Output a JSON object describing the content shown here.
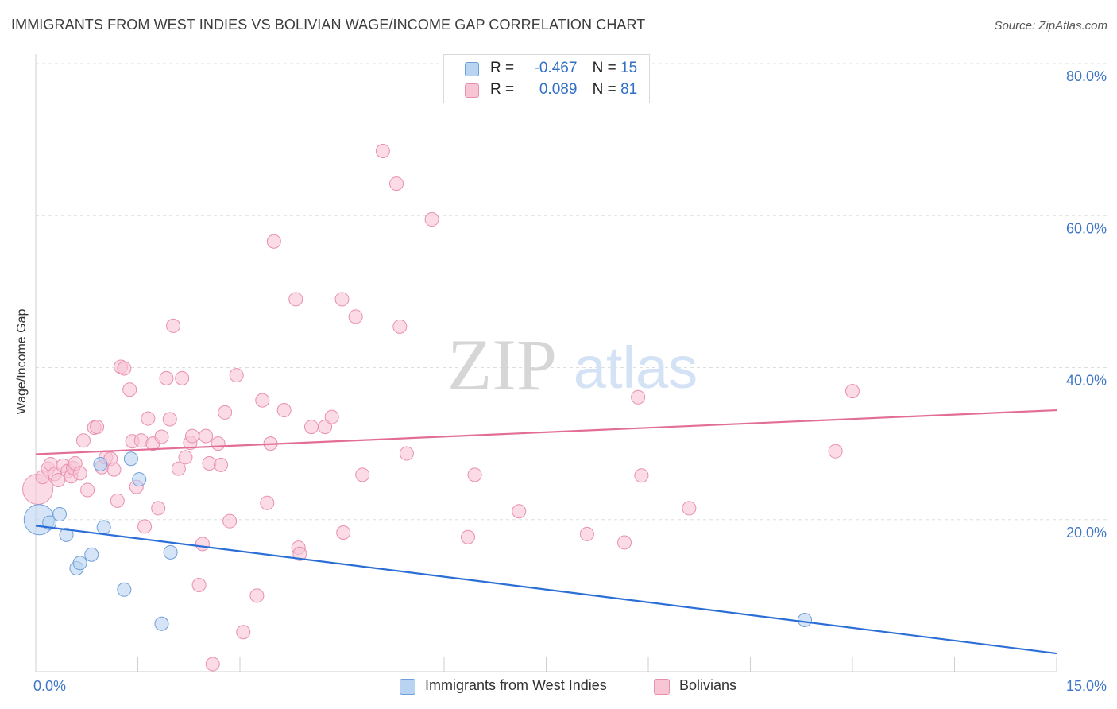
{
  "title": "IMMIGRANTS FROM WEST INDIES VS BOLIVIAN WAGE/INCOME GAP CORRELATION CHART",
  "source": "Source: ZipAtlas.com",
  "watermark": {
    "zip": "ZIP",
    "atlas": "atlas"
  },
  "colors": {
    "blue_fill": "#b9d3f2",
    "blue_stroke": "#6f9fd8",
    "blue_line": "#2b6fd6",
    "pink_fill": "#f8c5d5",
    "pink_stroke": "#e98fae",
    "pink_line": "#e26e98",
    "axis_text": "#3f76c7",
    "grid": "#dedede"
  },
  "legend": {
    "rows": [
      {
        "r_label": "R =",
        "r_value": "-0.467",
        "n_label": "N =",
        "n_value": "15"
      },
      {
        "r_label": "R =",
        "r_value": "0.089",
        "n_label": "N =",
        "n_value": "81"
      }
    ]
  },
  "chart_data": {
    "type": "scatter",
    "title": "IMMIGRANTS FROM WEST INDIES VS BOLIVIAN WAGE/INCOME GAP CORRELATION CHART",
    "xlabel": "",
    "ylabel": "Wage/Income Gap",
    "xlim": [
      0,
      15
    ],
    "ylim": [
      0,
      82
    ],
    "x_tick_labels": [
      "0.0%",
      "15.0%"
    ],
    "x_tick_label_values": [
      0,
      15
    ],
    "x_minor_ticks": [
      0,
      1.5,
      3,
      4.5,
      6,
      7.5,
      9,
      10.5,
      12,
      13.5,
      15
    ],
    "y_ticks": [
      20,
      40,
      60,
      80
    ],
    "y_tick_labels": [
      "20.0%",
      "40.0%",
      "60.0%",
      "80.0%"
    ],
    "grid": "horizontal dashed",
    "legend_position": "top-center and bottom",
    "series": [
      {
        "name": "Immigrants from West Indies",
        "color": "#b9d3f2",
        "R": -0.467,
        "N": 15,
        "trend": {
          "x": [
            0,
            15
          ],
          "y": [
            19.2,
            2.4
          ]
        },
        "points": [
          {
            "x": 0.05,
            "y": 20.0,
            "big": true
          },
          {
            "x": 0.2,
            "y": 19.6
          },
          {
            "x": 0.35,
            "y": 20.7
          },
          {
            "x": 0.45,
            "y": 18.0
          },
          {
            "x": 0.6,
            "y": 13.6
          },
          {
            "x": 0.65,
            "y": 14.3
          },
          {
            "x": 0.82,
            "y": 15.4
          },
          {
            "x": 0.95,
            "y": 27.3
          },
          {
            "x": 1.0,
            "y": 19.0
          },
          {
            "x": 1.3,
            "y": 10.8
          },
          {
            "x": 1.4,
            "y": 28.0
          },
          {
            "x": 1.52,
            "y": 25.3
          },
          {
            "x": 1.85,
            "y": 6.3
          },
          {
            "x": 1.98,
            "y": 15.7
          },
          {
            "x": 11.3,
            "y": 6.8
          }
        ]
      },
      {
        "name": "Bolivians",
        "color": "#f8c5d5",
        "R": 0.089,
        "N": 81,
        "trend": {
          "x": [
            0,
            15
          ],
          "y": [
            28.6,
            34.4
          ]
        },
        "points": [
          {
            "x": 0.03,
            "y": 24.0,
            "big": true
          },
          {
            "x": 0.1,
            "y": 25.6
          },
          {
            "x": 0.18,
            "y": 26.7
          },
          {
            "x": 0.22,
            "y": 27.3
          },
          {
            "x": 0.28,
            "y": 26.0
          },
          {
            "x": 0.33,
            "y": 25.2
          },
          {
            "x": 0.4,
            "y": 27.1
          },
          {
            "x": 0.47,
            "y": 26.4
          },
          {
            "x": 0.52,
            "y": 25.7
          },
          {
            "x": 0.55,
            "y": 26.8
          },
          {
            "x": 0.58,
            "y": 27.4
          },
          {
            "x": 0.65,
            "y": 26.1
          },
          {
            "x": 0.7,
            "y": 30.4
          },
          {
            "x": 0.76,
            "y": 23.9
          },
          {
            "x": 0.86,
            "y": 32.1
          },
          {
            "x": 0.9,
            "y": 32.2
          },
          {
            "x": 0.97,
            "y": 26.9
          },
          {
            "x": 1.03,
            "y": 28.2
          },
          {
            "x": 1.1,
            "y": 28.0
          },
          {
            "x": 1.15,
            "y": 26.6
          },
          {
            "x": 1.2,
            "y": 22.5
          },
          {
            "x": 1.25,
            "y": 40.1
          },
          {
            "x": 1.3,
            "y": 39.9
          },
          {
            "x": 1.38,
            "y": 37.1
          },
          {
            "x": 1.42,
            "y": 30.3
          },
          {
            "x": 1.48,
            "y": 24.3
          },
          {
            "x": 1.55,
            "y": 30.4
          },
          {
            "x": 1.6,
            "y": 19.1
          },
          {
            "x": 1.65,
            "y": 33.3
          },
          {
            "x": 1.72,
            "y": 30.0
          },
          {
            "x": 1.8,
            "y": 21.5
          },
          {
            "x": 1.85,
            "y": 30.9
          },
          {
            "x": 1.92,
            "y": 38.6
          },
          {
            "x": 1.97,
            "y": 33.2
          },
          {
            "x": 2.02,
            "y": 45.5
          },
          {
            "x": 2.1,
            "y": 26.7
          },
          {
            "x": 2.15,
            "y": 38.6
          },
          {
            "x": 2.2,
            "y": 28.2
          },
          {
            "x": 2.27,
            "y": 30.1
          },
          {
            "x": 2.3,
            "y": 31.0
          },
          {
            "x": 2.4,
            "y": 11.4
          },
          {
            "x": 2.45,
            "y": 16.8
          },
          {
            "x": 2.5,
            "y": 31.0
          },
          {
            "x": 2.55,
            "y": 27.4
          },
          {
            "x": 2.6,
            "y": 1.0
          },
          {
            "x": 2.68,
            "y": 30.0
          },
          {
            "x": 2.72,
            "y": 27.2
          },
          {
            "x": 2.78,
            "y": 34.1
          },
          {
            "x": 2.85,
            "y": 19.8
          },
          {
            "x": 2.95,
            "y": 39.0
          },
          {
            "x": 3.05,
            "y": 5.2
          },
          {
            "x": 3.25,
            "y": 10.0
          },
          {
            "x": 3.33,
            "y": 35.7
          },
          {
            "x": 3.4,
            "y": 22.2
          },
          {
            "x": 3.45,
            "y": 30.0
          },
          {
            "x": 3.5,
            "y": 56.6
          },
          {
            "x": 3.65,
            "y": 34.4
          },
          {
            "x": 3.82,
            "y": 49.0
          },
          {
            "x": 3.86,
            "y": 16.3
          },
          {
            "x": 3.88,
            "y": 15.5
          },
          {
            "x": 4.05,
            "y": 32.2
          },
          {
            "x": 4.25,
            "y": 32.2
          },
          {
            "x": 4.35,
            "y": 33.5
          },
          {
            "x": 4.5,
            "y": 49.0
          },
          {
            "x": 4.52,
            "y": 18.3
          },
          {
            "x": 4.7,
            "y": 46.7
          },
          {
            "x": 4.8,
            "y": 25.9
          },
          {
            "x": 5.1,
            "y": 68.5
          },
          {
            "x": 5.3,
            "y": 64.2
          },
          {
            "x": 5.35,
            "y": 45.4
          },
          {
            "x": 5.45,
            "y": 28.7
          },
          {
            "x": 5.82,
            "y": 59.5
          },
          {
            "x": 6.35,
            "y": 17.7
          },
          {
            "x": 6.45,
            "y": 25.9
          },
          {
            "x": 7.1,
            "y": 21.1
          },
          {
            "x": 8.1,
            "y": 18.1
          },
          {
            "x": 8.65,
            "y": 17.0
          },
          {
            "x": 8.85,
            "y": 36.1
          },
          {
            "x": 8.9,
            "y": 25.8
          },
          {
            "x": 9.6,
            "y": 21.5
          },
          {
            "x": 11.75,
            "y": 29.0
          },
          {
            "x": 12.0,
            "y": 36.9
          }
        ]
      }
    ]
  }
}
